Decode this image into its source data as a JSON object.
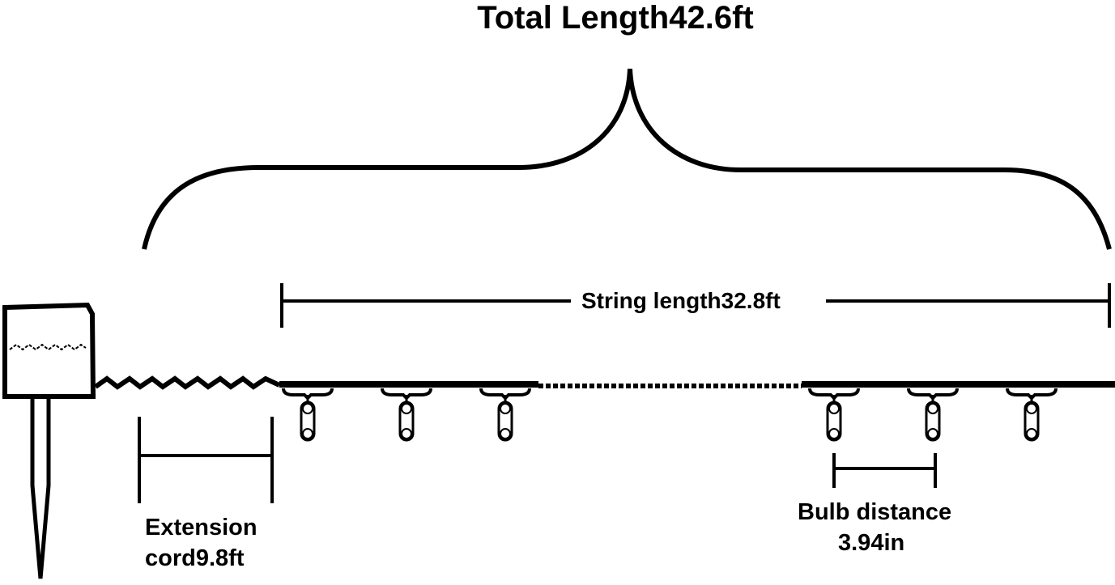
{
  "title": "Total Length42.6ft",
  "string_length": "String length32.8ft",
  "extension_line1": "Extension",
  "extension_line2": "cord9.8ft",
  "bulb_line1": "Bulb distance",
  "bulb_line2": "3.94in",
  "colors": {
    "stroke": "#000000",
    "background": "#ffffff"
  }
}
